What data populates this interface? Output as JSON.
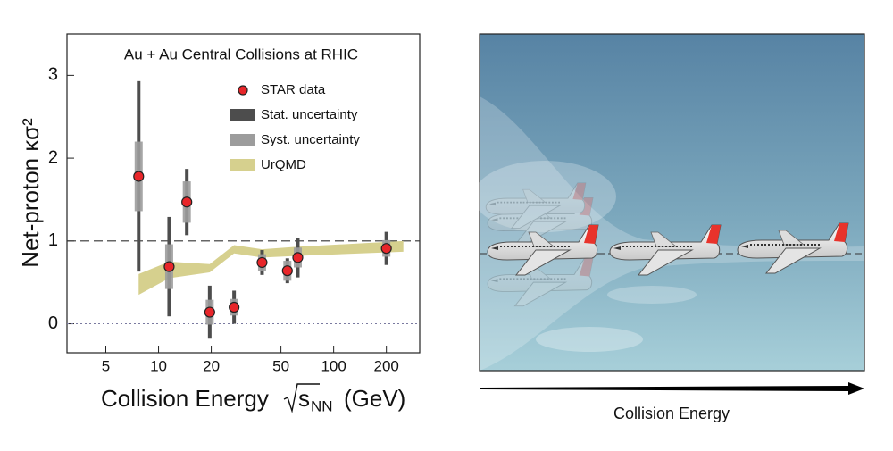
{
  "chart_data": {
    "type": "errorbar",
    "title": "Au + Au Central Collisions at RHIC",
    "ylabel": "Net-proton κσ²",
    "xlabel_parts": [
      "Collision Energy",
      "s",
      "NN",
      "(GeV)"
    ],
    "xscale": "log",
    "xlim": [
      3,
      310
    ],
    "xticks": [
      5,
      10,
      20,
      50,
      100,
      200
    ],
    "ylim": [
      -0.35,
      3.5
    ],
    "yticks": [
      0,
      1,
      2,
      3
    ],
    "hlines": [
      {
        "value": 1,
        "style": "dashed"
      },
      {
        "value": 0,
        "style": "dotted"
      }
    ],
    "series": [
      {
        "name": "STAR data",
        "color": "#e8262a",
        "x": [
          7.7,
          11.5,
          14.5,
          19.6,
          27,
          39,
          54.4,
          62.4,
          200
        ],
        "values": [
          1.78,
          0.69,
          1.47,
          0.14,
          0.2,
          0.74,
          0.64,
          0.8,
          0.91
        ],
        "stat": {
          "name": "Stat. uncertainty",
          "color": "#4d4d4d",
          "values": [
            1.15,
            0.6,
            0.4,
            0.32,
            0.2,
            0.15,
            0.15,
            0.24,
            0.2
          ]
        },
        "syst": {
          "name": "Syst. uncertainty",
          "color": "#9c9c9c",
          "values": [
            0.42,
            0.27,
            0.25,
            0.15,
            0.1,
            0.1,
            0.12,
            0.12,
            0.1
          ]
        }
      },
      {
        "name": "UrQMD",
        "color": "#d6d08e",
        "x": [
          7.7,
          11.5,
          19.6,
          27,
          39,
          62.4,
          250
        ],
        "upper": [
          0.6,
          0.75,
          0.72,
          0.95,
          0.9,
          0.93,
          1.0
        ],
        "lower": [
          0.35,
          0.55,
          0.62,
          0.85,
          0.8,
          0.82,
          0.87
        ]
      }
    ]
  },
  "illustration": {
    "caption": "Collision Energy"
  }
}
